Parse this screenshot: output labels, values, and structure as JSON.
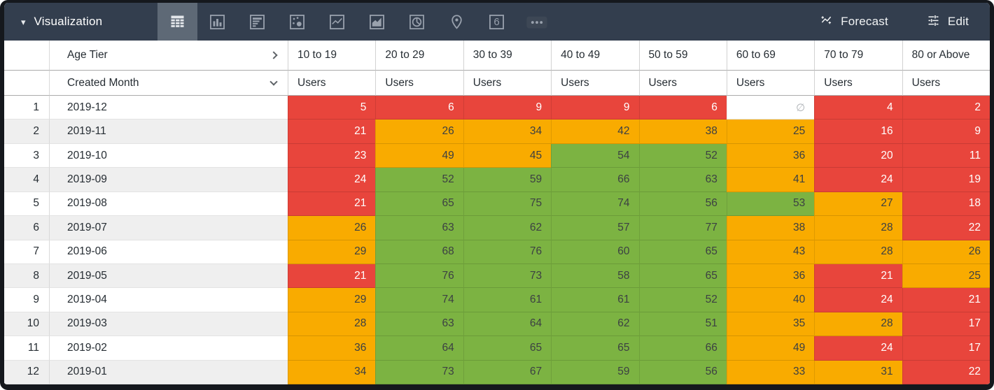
{
  "toolbar": {
    "title": "Visualization",
    "forecast_label": "Forecast",
    "edit_label": "Edit",
    "single_value_glyph": "6",
    "selected_viz": "table",
    "viz_types": [
      "table",
      "column-chart",
      "bar-chart",
      "scatter",
      "line-chart",
      "area-chart",
      "pie-chart",
      "map-pin",
      "single-value",
      "more"
    ],
    "colors": {
      "bar_bg": "#333e4e",
      "selected_tab_bg": "#5e6976",
      "icon": "#99a1ad",
      "text": "#ffffff"
    }
  },
  "chart_data": {
    "type": "table",
    "pivot_dimension": "Age Tier",
    "row_dimension": "Created Month",
    "measure_label": "Users",
    "columns": [
      "10 to 19",
      "20 to 29",
      "30 to 39",
      "40 to 49",
      "50 to 59",
      "60 to 69",
      "70 to 79",
      "80 or Above"
    ],
    "null_glyph": "∅",
    "palette": {
      "r": "#e8453c",
      "o": "#f9ab00",
      "g": "#7cb342",
      "n": "#ffffff"
    },
    "rows": [
      {
        "index": 1,
        "month": "2019-12",
        "values": [
          5,
          6,
          9,
          9,
          6,
          null,
          4,
          2
        ],
        "colors": [
          "r",
          "r",
          "r",
          "r",
          "r",
          "n",
          "r",
          "r"
        ]
      },
      {
        "index": 2,
        "month": "2019-11",
        "values": [
          21,
          26,
          34,
          42,
          38,
          25,
          16,
          9
        ],
        "colors": [
          "r",
          "o",
          "o",
          "o",
          "o",
          "o",
          "r",
          "r"
        ]
      },
      {
        "index": 3,
        "month": "2019-10",
        "values": [
          23,
          49,
          45,
          54,
          52,
          36,
          20,
          11
        ],
        "colors": [
          "r",
          "o",
          "o",
          "g",
          "g",
          "o",
          "r",
          "r"
        ]
      },
      {
        "index": 4,
        "month": "2019-09",
        "values": [
          24,
          52,
          59,
          66,
          63,
          41,
          24,
          19
        ],
        "colors": [
          "r",
          "g",
          "g",
          "g",
          "g",
          "o",
          "r",
          "r"
        ]
      },
      {
        "index": 5,
        "month": "2019-08",
        "values": [
          21,
          65,
          75,
          74,
          56,
          53,
          27,
          18
        ],
        "colors": [
          "r",
          "g",
          "g",
          "g",
          "g",
          "g",
          "o",
          "r"
        ]
      },
      {
        "index": 6,
        "month": "2019-07",
        "values": [
          26,
          63,
          62,
          57,
          77,
          38,
          28,
          22
        ],
        "colors": [
          "o",
          "g",
          "g",
          "g",
          "g",
          "o",
          "o",
          "r"
        ]
      },
      {
        "index": 7,
        "month": "2019-06",
        "values": [
          29,
          68,
          76,
          60,
          65,
          43,
          28,
          26
        ],
        "colors": [
          "o",
          "g",
          "g",
          "g",
          "g",
          "o",
          "o",
          "o"
        ]
      },
      {
        "index": 8,
        "month": "2019-05",
        "values": [
          21,
          76,
          73,
          58,
          65,
          36,
          21,
          25
        ],
        "colors": [
          "r",
          "g",
          "g",
          "g",
          "g",
          "o",
          "r",
          "o"
        ]
      },
      {
        "index": 9,
        "month": "2019-04",
        "values": [
          29,
          74,
          61,
          61,
          52,
          40,
          24,
          21
        ],
        "colors": [
          "o",
          "g",
          "g",
          "g",
          "g",
          "o",
          "r",
          "r"
        ]
      },
      {
        "index": 10,
        "month": "2019-03",
        "values": [
          28,
          63,
          64,
          62,
          51,
          35,
          28,
          17
        ],
        "colors": [
          "o",
          "g",
          "g",
          "g",
          "g",
          "o",
          "o",
          "r"
        ]
      },
      {
        "index": 11,
        "month": "2019-02",
        "values": [
          36,
          64,
          65,
          65,
          66,
          49,
          24,
          17
        ],
        "colors": [
          "o",
          "g",
          "g",
          "g",
          "g",
          "o",
          "r",
          "r"
        ]
      },
      {
        "index": 12,
        "month": "2019-01",
        "values": [
          34,
          73,
          67,
          59,
          56,
          33,
          31,
          22
        ],
        "colors": [
          "o",
          "g",
          "g",
          "g",
          "g",
          "o",
          "o",
          "r"
        ]
      }
    ]
  }
}
